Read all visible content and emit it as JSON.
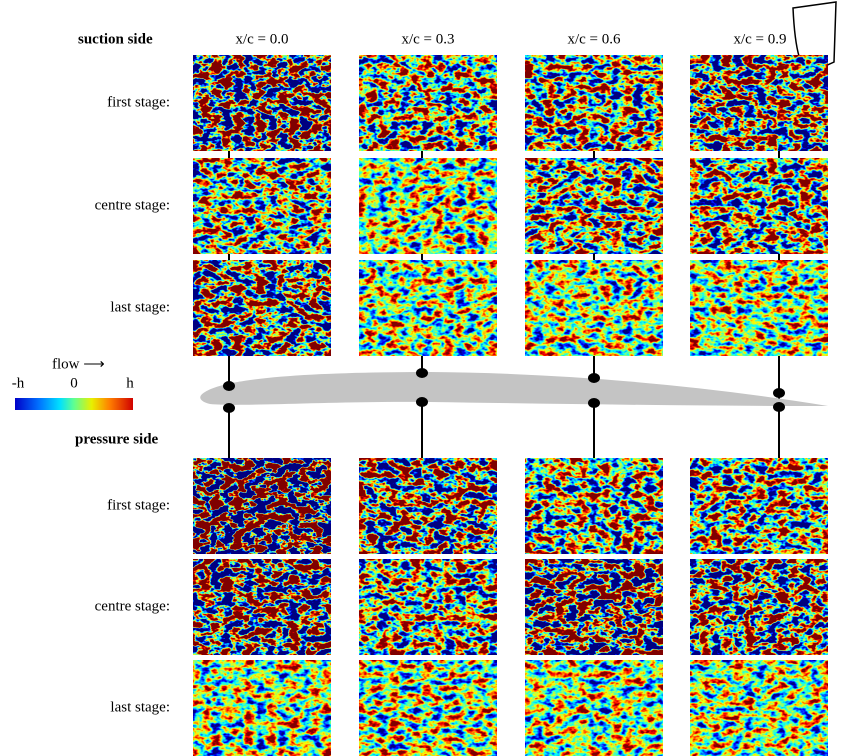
{
  "suction": {
    "title": "suction side",
    "rows": [
      "first stage:",
      "centre stage:",
      "last stage:"
    ]
  },
  "pressure": {
    "title": "pressure side",
    "rows": [
      "first stage:",
      "centre stage:",
      "last stage:"
    ]
  },
  "columns": [
    "x/c = 0.0",
    "x/c = 0.3",
    "x/c = 0.6",
    "x/c = 0.9"
  ],
  "legend": {
    "flow": "flow ⟶",
    "labels": [
      "-h",
      "0",
      "h"
    ]
  }
}
